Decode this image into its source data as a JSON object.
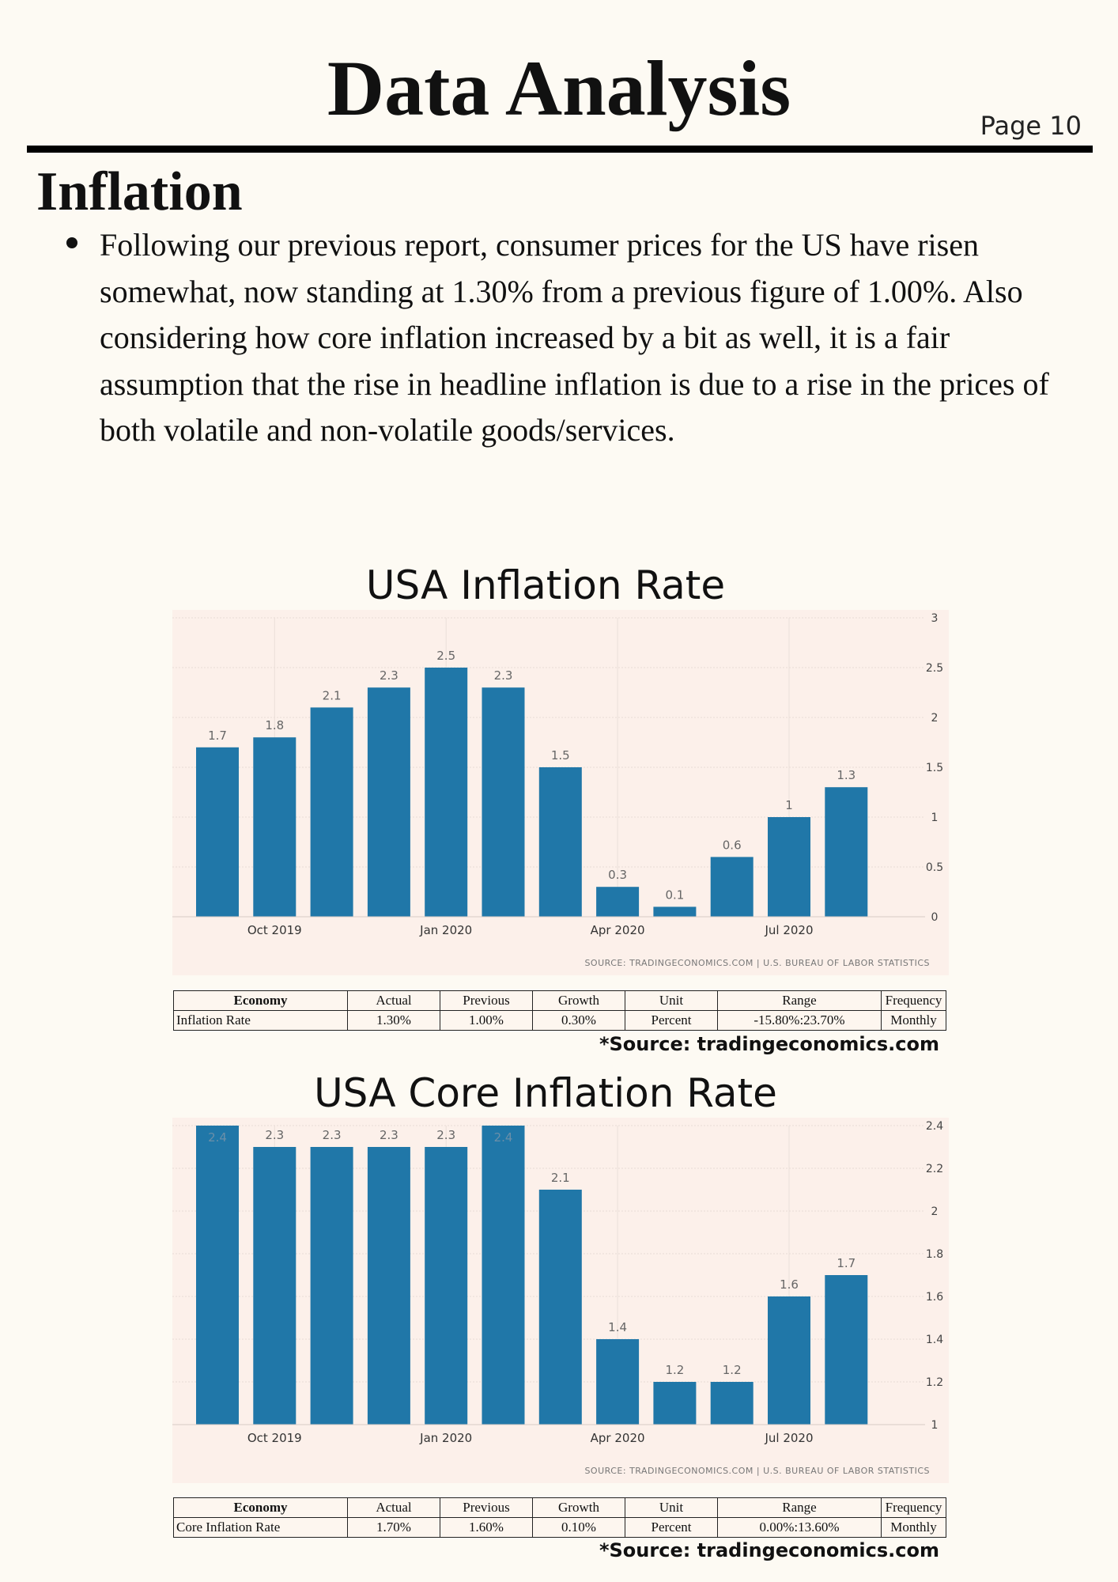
{
  "header": {
    "title": "Data Analysis",
    "page_label": "Page 10"
  },
  "section": {
    "title": "Inflation",
    "bullet": "Following our previous report, consumer prices for the US have risen somewhat, now standing at 1.30% from a previous figure of 1.00%. Also considering how core inflation increased by a bit as well, it is a fair assumption that the rise in headline inflation is due to a rise in the prices of both volatile and non-volatile goods/services."
  },
  "charts": [
    {
      "heading": "USA Inflation Rate",
      "source_caption": "SOURCE: TRADINGECONOMICS.COM | U.S. BUREAU OF LABOR STATISTICS",
      "table": {
        "headers": [
          "Economy",
          "Actual",
          "Previous",
          "Growth",
          "Unit",
          "Range",
          "Frequency"
        ],
        "row": [
          "Inflation Rate",
          "1.30%",
          "1.00%",
          "0.30%",
          "Percent",
          "-15.80%:23.70%",
          "Monthly"
        ]
      },
      "source_note": "*Source: tradingeconomics.com"
    },
    {
      "heading": "USA Core Inflation Rate",
      "source_caption": "SOURCE: TRADINGECONOMICS.COM | U.S. BUREAU OF LABOR STATISTICS",
      "table": {
        "headers": [
          "Economy",
          "Actual",
          "Previous",
          "Growth",
          "Unit",
          "Range",
          "Frequency"
        ],
        "row": [
          "Core Inflation Rate",
          "1.70%",
          "1.60%",
          "0.10%",
          "Percent",
          "0.00%:13.60%",
          "Monthly"
        ]
      },
      "source_note": "*Source: tradingeconomics.com"
    }
  ],
  "chart_data": [
    {
      "type": "bar",
      "title": "USA Inflation Rate",
      "categories": [
        "",
        "Oct 2019",
        "",
        "",
        "Jan 2020",
        "",
        "",
        "Apr 2020",
        "",
        "",
        "Jul 2020",
        ""
      ],
      "values": [
        1.7,
        1.8,
        2.1,
        2.3,
        2.5,
        2.3,
        1.5,
        0.3,
        0.1,
        0.6,
        1,
        1.3
      ],
      "value_labels": [
        "1.7",
        "1.8",
        "2.1",
        "2.3",
        "2.5",
        "2.3",
        "1.5",
        "0.3",
        "0.1",
        "0.6",
        "1",
        "1.3"
      ],
      "x_ticks": [
        "Oct 2019",
        "Jan 2020",
        "Apr 2020",
        "Jul 2020"
      ],
      "y_ticks": [
        "0",
        "0.5",
        "1",
        "1.5",
        "2",
        "2.5",
        "3"
      ],
      "ylim": [
        0,
        3
      ],
      "y_axis_side": "right",
      "grid": true,
      "bar_color": "#2077a8"
    },
    {
      "type": "bar",
      "title": "USA Core Inflation Rate",
      "categories": [
        "",
        "Oct 2019",
        "",
        "",
        "Jan 2020",
        "",
        "",
        "Apr 2020",
        "",
        "",
        "Jul 2020",
        ""
      ],
      "values": [
        2.4,
        2.3,
        2.3,
        2.3,
        2.3,
        2.4,
        2.1,
        1.4,
        1.2,
        1.2,
        1.6,
        1.7
      ],
      "value_labels": [
        "2.4",
        "2.3",
        "2.3",
        "2.3",
        "2.3",
        "2.4",
        "2.1",
        "1.4",
        "1.2",
        "1.2",
        "1.6",
        "1.7"
      ],
      "x_ticks": [
        "Oct 2019",
        "Jan 2020",
        "Apr 2020",
        "Jul 2020"
      ],
      "y_ticks": [
        "1",
        "1.2",
        "1.4",
        "1.6",
        "1.8",
        "2",
        "2.2",
        "2.4"
      ],
      "ylim": [
        1,
        2.4
      ],
      "y_axis_side": "right",
      "grid": true,
      "bar_color": "#2077a8"
    }
  ]
}
